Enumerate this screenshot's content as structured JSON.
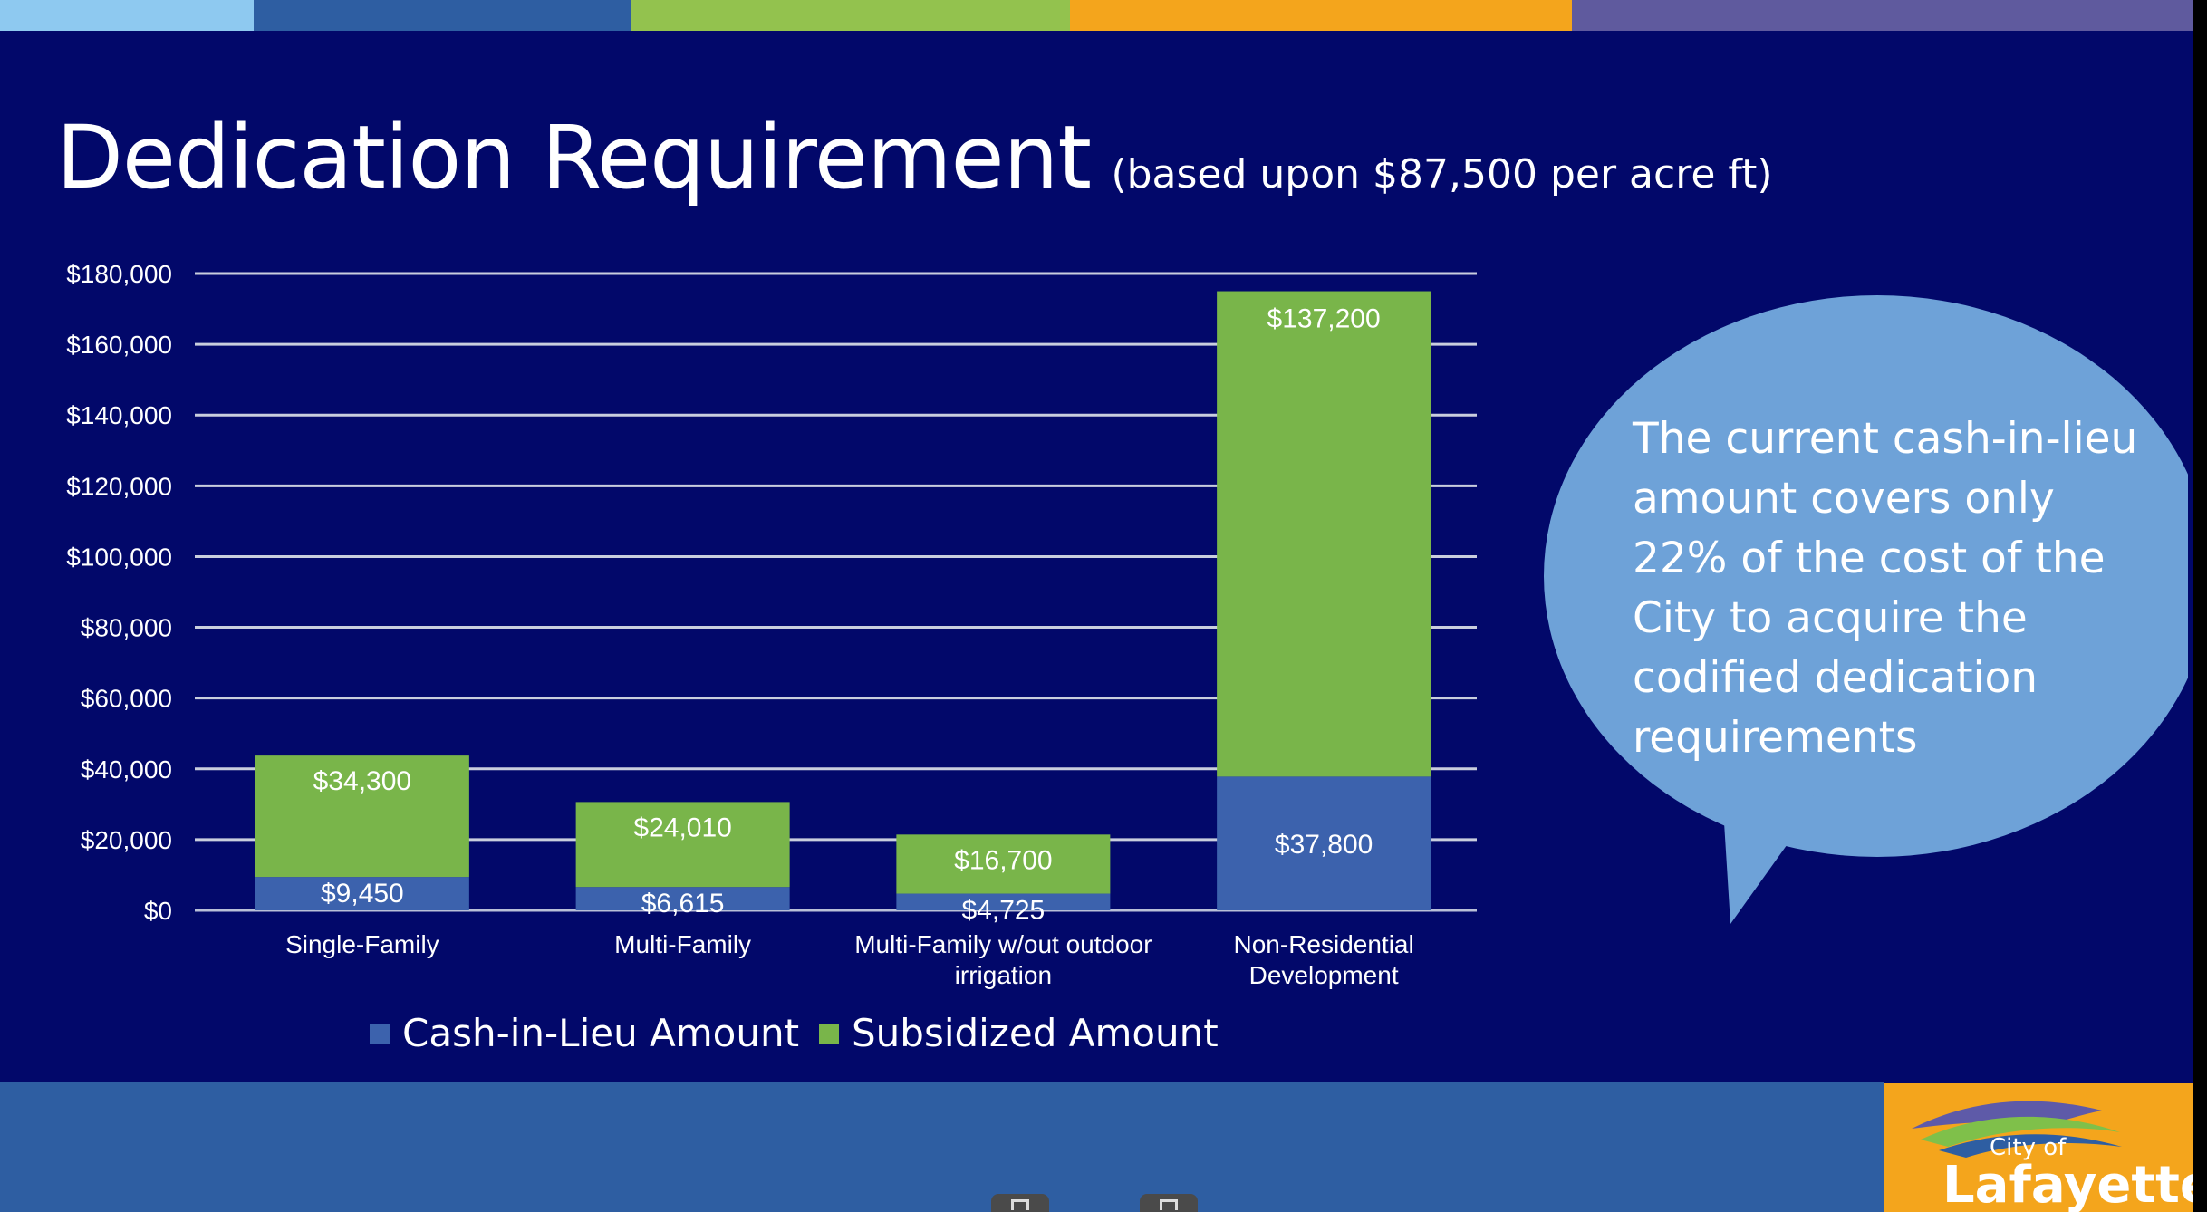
{
  "slide": {
    "title": "Dedication Requirement",
    "subtitle": "(based upon $87,500 per acre ft)",
    "stripe_colors": [
      "#8ec9f0",
      "#2e5ea2",
      "#93c24e",
      "#f4a51c",
      "#5f5a9e"
    ],
    "callout": "The current cash-in-lieu amount covers only 22% of the cost of the City to acquire the codified dedication requirements",
    "logo": {
      "small": "City of",
      "big": "Lafayette",
      "icon": "hills-logo-icon"
    },
    "colors": {
      "background": "#02086a",
      "cash": "#3c62ad",
      "subsidized": "#79b54a",
      "callout": "#6ea2d8"
    }
  },
  "chart_data": {
    "type": "bar",
    "stacked": true,
    "categories": [
      [
        "Single-Family"
      ],
      [
        "Multi-Family"
      ],
      [
        "Multi-Family w/out outdoor",
        "irrigation"
      ],
      [
        "Non-Residential",
        "Development"
      ]
    ],
    "series": [
      {
        "name": "Cash-in-Lieu Amount",
        "color": "#3c62ad",
        "values": [
          9450,
          6615,
          4725,
          37800
        ],
        "labels": [
          "$9,450",
          "$6,615",
          "$4,725",
          "$37,800"
        ]
      },
      {
        "name": "Subsidized Amount",
        "color": "#79b54a",
        "values": [
          34300,
          24010,
          16700,
          137200
        ],
        "labels": [
          "$34,300",
          "$24,010",
          "$16,700",
          "$137,200"
        ]
      }
    ],
    "yticks": [
      "$0",
      "$20,000",
      "$40,000",
      "$60,000",
      "$80,000",
      "$100,000",
      "$120,000",
      "$140,000",
      "$160,000",
      "$180,000"
    ],
    "ylim": [
      0,
      180000
    ],
    "grid": true,
    "legend": "bottom"
  }
}
